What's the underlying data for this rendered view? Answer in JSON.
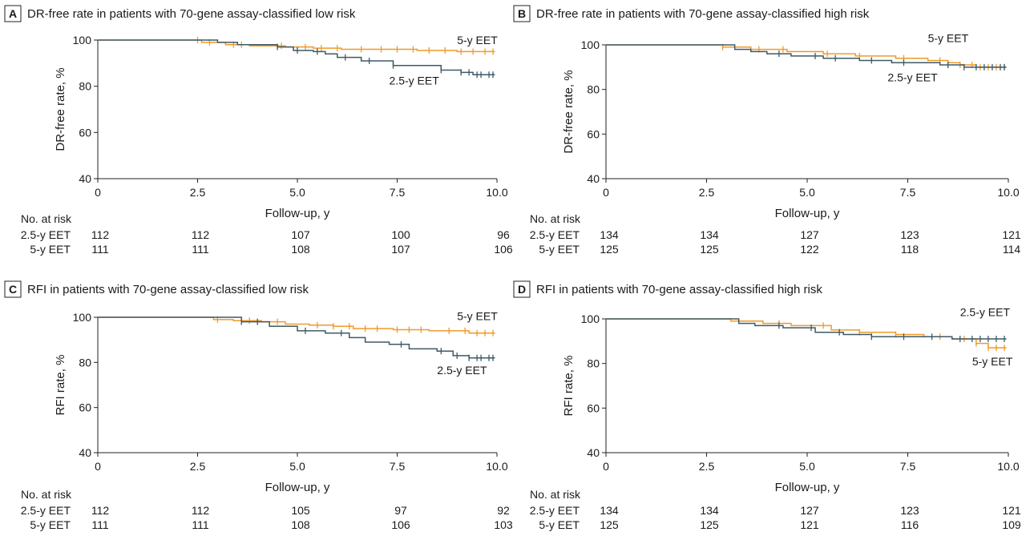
{
  "colors": {
    "eet_2_5": "#3d5a66",
    "eet_5": "#f09a2a",
    "axis": "#222222",
    "text": "#1a1a1a"
  },
  "chart_data": [
    {
      "panel": "A",
      "title": "DR-free rate in patients with 70-gene assay-classified low risk",
      "type": "line",
      "xlabel": "Follow-up, y",
      "ylabel": "DR-free rate, %",
      "xlim": [
        0,
        10
      ],
      "ylim": [
        40,
        100
      ],
      "xticks": [
        "0",
        "2.5",
        "5.0",
        "7.5",
        "10.0"
      ],
      "yticks": [
        "40",
        "60",
        "80",
        "100"
      ],
      "series": [
        {
          "name": "5-y EET",
          "color": "#f09a2a",
          "x": [
            0,
            2.1,
            2.6,
            3.2,
            3.8,
            4.7,
            5.4,
            6.1,
            7.0,
            8.0,
            9.0,
            9.95
          ],
          "y": [
            100,
            100,
            99,
            98,
            97.5,
            97,
            96.5,
            96,
            96,
            95.5,
            95,
            95
          ],
          "censor_x": [
            2.5,
            2.8,
            3.4,
            3.6,
            4.6,
            5.2,
            5.6,
            6.0,
            6.6,
            7.1,
            7.5,
            7.9,
            8.3,
            8.7,
            9.1,
            9.4,
            9.7,
            9.9
          ]
        },
        {
          "name": "2.5-y EET",
          "color": "#3d5a66",
          "x": [
            0,
            2.5,
            3.0,
            3.5,
            4.5,
            4.9,
            5.4,
            5.7,
            6.0,
            6.6,
            7.4,
            8.6,
            9.1,
            9.4,
            9.95
          ],
          "y": [
            100,
            100,
            99,
            98,
            97,
            95.5,
            95,
            94,
            92.5,
            91,
            89,
            87,
            86,
            85,
            85
          ],
          "censor_x": [
            4.5,
            5.0,
            5.5,
            6.2,
            6.8,
            7.4,
            8.6,
            9.1,
            9.3,
            9.5,
            9.6,
            9.8,
            9.9
          ]
        }
      ],
      "annotations": [
        {
          "text": "5-y EET",
          "x": 9.0,
          "y": 100
        },
        {
          "text": "2.5-y EET",
          "x": 7.3,
          "y": 82.5
        }
      ],
      "risk_table": {
        "header": "No. at risk",
        "rows": [
          {
            "label": "2.5-y EET",
            "values": [
              "112",
              "112",
              "107",
              "100",
              "96"
            ]
          },
          {
            "label": "5-y EET",
            "values": [
              "111",
              "111",
              "108",
              "107",
              "106"
            ]
          }
        ]
      }
    },
    {
      "panel": "B",
      "title": "DR-free rate in patients with 70-gene assay-classified high risk",
      "type": "line",
      "xlabel": "Follow-up, y",
      "ylabel": "DR-free rate, %",
      "xlim": [
        0,
        10
      ],
      "ylim": [
        40,
        100
      ],
      "xticks": [
        "0",
        "2.5",
        "5.0",
        "7.5",
        "10.0"
      ],
      "yticks": [
        "40",
        "60",
        "80",
        "100"
      ],
      "series": [
        {
          "name": "5-y EET",
          "color": "#f09a2a",
          "x": [
            0,
            2.2,
            2.9,
            3.6,
            4.5,
            5.4,
            6.2,
            7.2,
            8.0,
            8.5,
            8.8,
            9.2,
            9.95
          ],
          "y": [
            100,
            100,
            99,
            98,
            97,
            96,
            95,
            94,
            93,
            92,
            91,
            90,
            90
          ],
          "censor_x": [
            2.9,
            3.8,
            4.4,
            5.5,
            6.3,
            7.4,
            8.3,
            8.8,
            9.1,
            9.3,
            9.5,
            9.7,
            9.9
          ]
        },
        {
          "name": "2.5-y EET",
          "color": "#3d5a66",
          "x": [
            0,
            2.9,
            3.2,
            3.6,
            4.0,
            4.6,
            5.4,
            6.3,
            7.1,
            8.3,
            8.9,
            9.95
          ],
          "y": [
            100,
            100,
            98,
            97,
            96,
            95,
            94,
            93,
            92,
            91,
            90,
            90
          ],
          "censor_x": [
            4.3,
            5.2,
            5.7,
            6.6,
            7.4,
            8.5,
            8.9,
            9.2,
            9.4,
            9.6,
            9.8,
            9.9
          ]
        }
      ],
      "annotations": [
        {
          "text": "5-y EET",
          "x": 8.0,
          "y": 103
        },
        {
          "text": "2.5-y EET",
          "x": 7.0,
          "y": 85.5
        }
      ],
      "risk_table": {
        "header": "No. at risk",
        "rows": [
          {
            "label": "2.5-y EET",
            "values": [
              "134",
              "134",
              "127",
              "123",
              "121"
            ]
          },
          {
            "label": "5-y EET",
            "values": [
              "125",
              "125",
              "122",
              "118",
              "114"
            ]
          }
        ]
      }
    },
    {
      "panel": "C",
      "title": "RFI in patients with 70-gene assay-classified low risk",
      "type": "line",
      "xlabel": "Follow-up, y",
      "ylabel": "RFI rate, %",
      "xlim": [
        0,
        10
      ],
      "ylim": [
        40,
        100
      ],
      "xticks": [
        "0",
        "2.5",
        "5.0",
        "7.5",
        "10.0"
      ],
      "yticks": [
        "40",
        "60",
        "80",
        "100"
      ],
      "series": [
        {
          "name": "5-y EET",
          "color": "#f09a2a",
          "x": [
            0,
            2.4,
            2.9,
            3.4,
            4.1,
            4.7,
            5.3,
            5.9,
            6.4,
            7.4,
            8.3,
            9.3,
            9.95
          ],
          "y": [
            100,
            100,
            99,
            98.5,
            98,
            97,
            96.5,
            96,
            95,
            94.5,
            94,
            93,
            93
          ],
          "censor_x": [
            3.0,
            3.8,
            4.5,
            5.5,
            5.9,
            6.3,
            6.7,
            7.0,
            7.5,
            7.8,
            8.1,
            8.8,
            9.2,
            9.5,
            9.7,
            9.9
          ]
        },
        {
          "name": "2.5-y EET",
          "color": "#3d5a66",
          "x": [
            0,
            3.3,
            3.6,
            4.3,
            5.0,
            5.7,
            6.3,
            6.7,
            7.3,
            7.8,
            8.5,
            8.9,
            9.3,
            9.95
          ],
          "y": [
            100,
            100,
            98,
            96,
            94,
            93,
            91,
            89,
            88,
            86,
            85,
            83,
            82,
            82
          ],
          "censor_x": [
            3.6,
            4.0,
            5.2,
            6.1,
            7.6,
            8.6,
            9.0,
            9.3,
            9.5,
            9.6,
            9.8,
            9.9
          ]
        }
      ],
      "annotations": [
        {
          "text": "5-y EET",
          "x": 9.0,
          "y": 100.5
        },
        {
          "text": "2.5-y EET",
          "x": 8.5,
          "y": 76.5
        }
      ],
      "risk_table": {
        "header": "No. at risk",
        "rows": [
          {
            "label": "2.5-y EET",
            "values": [
              "112",
              "112",
              "105",
              "97",
              "92"
            ]
          },
          {
            "label": "5-y EET",
            "values": [
              "111",
              "111",
              "108",
              "106",
              "103"
            ]
          }
        ]
      }
    },
    {
      "panel": "D",
      "title": "RFI in patients with 70-gene assay-classified high risk",
      "type": "line",
      "xlabel": "Follow-up, y",
      "ylabel": "RFI rate, %",
      "xlim": [
        0,
        10
      ],
      "ylim": [
        40,
        100
      ],
      "xticks": [
        "0",
        "2.5",
        "5.0",
        "7.5",
        "10.0"
      ],
      "yticks": [
        "40",
        "60",
        "80",
        "100"
      ],
      "series": [
        {
          "name": "5-y EET",
          "color": "#f09a2a",
          "x": [
            0,
            2.4,
            3.1,
            3.9,
            4.6,
            5.6,
            6.3,
            7.2,
            7.9,
            8.6,
            9.2,
            9.5,
            9.95
          ],
          "y": [
            100,
            100,
            99,
            98,
            97,
            95,
            94,
            93,
            92,
            91,
            89,
            87,
            87
          ],
          "censor_x": [
            4.3,
            5.4,
            6.3,
            7.2,
            8.3,
            8.9,
            9.2,
            9.5,
            9.7,
            9.9
          ]
        },
        {
          "name": "2.5-y EET",
          "color": "#3d5a66",
          "x": [
            0,
            3.0,
            3.3,
            3.7,
            4.4,
            5.2,
            5.9,
            6.6,
            8.6,
            9.95
          ],
          "y": [
            100,
            100,
            98,
            97,
            96,
            94,
            93,
            92,
            91,
            91
          ],
          "censor_x": [
            4.3,
            5.1,
            5.8,
            6.6,
            7.4,
            8.1,
            8.8,
            9.1,
            9.3,
            9.5,
            9.7,
            9.9
          ]
        }
      ],
      "annotations": [
        {
          "text": "2.5-y EET",
          "x": 8.8,
          "y": 103
        },
        {
          "text": "5-y EET",
          "x": 9.1,
          "y": 81
        }
      ],
      "risk_table": {
        "header": "No. at risk",
        "rows": [
          {
            "label": "2.5-y EET",
            "values": [
              "134",
              "134",
              "127",
              "123",
              "121"
            ]
          },
          {
            "label": "5-y EET",
            "values": [
              "125",
              "125",
              "121",
              "116",
              "109"
            ]
          }
        ]
      }
    }
  ]
}
